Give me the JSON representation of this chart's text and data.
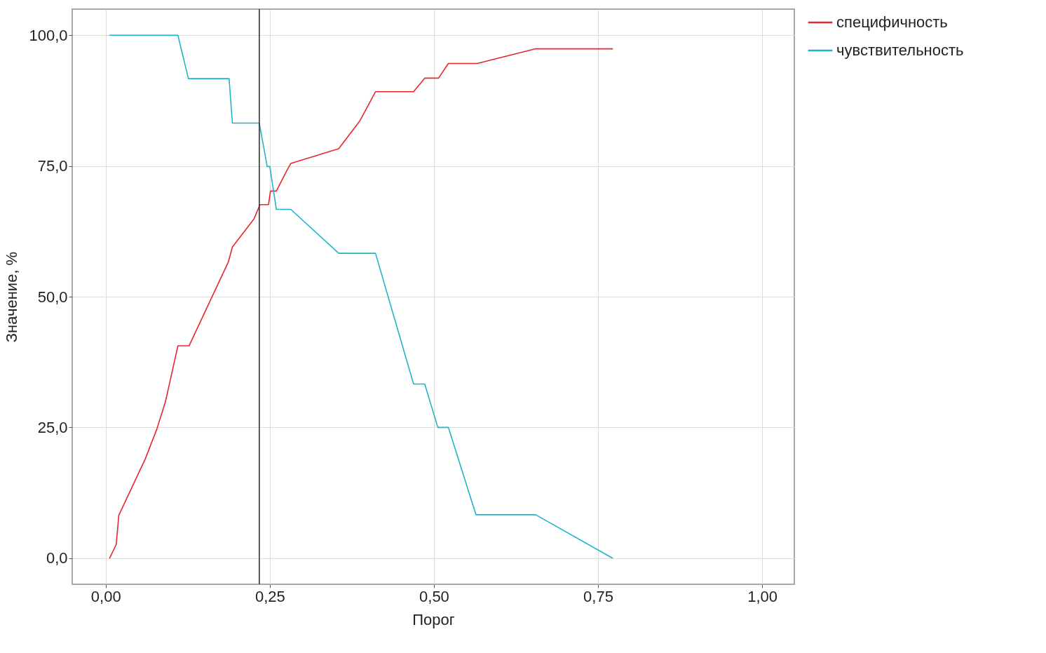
{
  "chart_data": {
    "type": "line",
    "xlabel": "Порог",
    "ylabel": "Значение, %",
    "xlim": [
      -0.051,
      1.049
    ],
    "ylim": [
      -5,
      105
    ],
    "xticks": [
      {
        "value": 0,
        "label": "0,00"
      },
      {
        "value": 0.25,
        "label": "0,25"
      },
      {
        "value": 0.5,
        "label": "0,50"
      },
      {
        "value": 0.75,
        "label": "0,75"
      },
      {
        "value": 1,
        "label": "1,00"
      }
    ],
    "yticks": [
      {
        "value": 0,
        "label": "0,0"
      },
      {
        "value": 25,
        "label": "25,0"
      },
      {
        "value": 50,
        "label": "50,0"
      },
      {
        "value": 75,
        "label": "75,0"
      },
      {
        "value": 100,
        "label": "100,0"
      }
    ],
    "grid": true,
    "legend": "right",
    "series": [
      {
        "name": "специфичность",
        "color": "#e8262b",
        "x": [
          0.006,
          0.016,
          0.02,
          0.06,
          0.078,
          0.091,
          0.11,
          0.127,
          0.187,
          0.193,
          0.226,
          0.235,
          0.248,
          0.251,
          0.26,
          0.275,
          0.282,
          0.355,
          0.387,
          0.411,
          0.469,
          0.486,
          0.507,
          0.522,
          0.566,
          0.654,
          0.772
        ],
        "values": [
          0,
          2.6,
          8.2,
          18.9,
          24.7,
          29.9,
          40.6,
          40.6,
          56.7,
          59.5,
          64.9,
          67.6,
          67.6,
          70.2,
          70.2,
          73.9,
          75.5,
          78.3,
          83.6,
          89.2,
          89.2,
          91.8,
          91.8,
          94.6,
          94.6,
          97.4,
          97.4
        ]
      },
      {
        "name": "чувствительность",
        "color": "#1fb5c9",
        "x": [
          0.006,
          0.11,
          0.126,
          0.188,
          0.193,
          0.234,
          0.246,
          0.25,
          0.26,
          0.282,
          0.355,
          0.411,
          0.469,
          0.486,
          0.506,
          0.522,
          0.564,
          0.655,
          0.772
        ],
        "values": [
          100,
          100,
          91.7,
          91.7,
          83.2,
          83.2,
          74.9,
          74.9,
          66.7,
          66.7,
          58.3,
          58.3,
          33.3,
          33.3,
          25,
          25,
          8.3,
          8.3,
          0
        ]
      }
    ],
    "ref_lines": [
      {
        "axis": "x",
        "value": 0.234,
        "color": "#333333"
      }
    ]
  }
}
